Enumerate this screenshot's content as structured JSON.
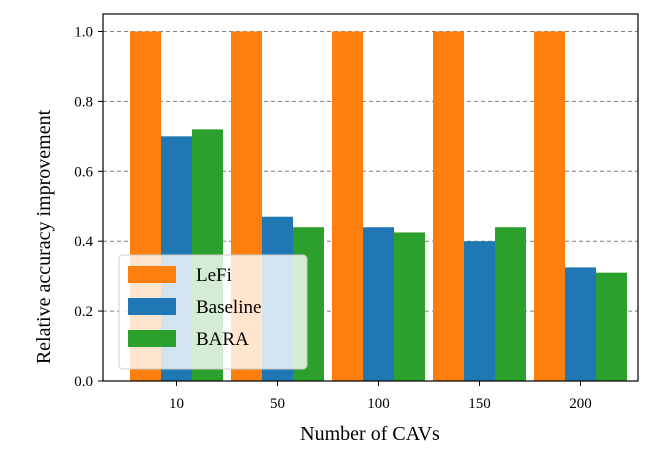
{
  "chart_data": {
    "type": "bar",
    "title": "",
    "xlabel": "Number of CAVs",
    "ylabel": "Relative accuracy improvement",
    "categories": [
      "10",
      "50",
      "100",
      "150",
      "200"
    ],
    "series": [
      {
        "name": "LeFi",
        "color": "#ff7f0e",
        "values": [
          1.0,
          1.0,
          1.0,
          1.0,
          1.0
        ]
      },
      {
        "name": "Baseline",
        "color": "#1f77b4",
        "values": [
          0.7,
          0.47,
          0.44,
          0.4,
          0.325
        ]
      },
      {
        "name": "BARA",
        "color": "#2ca02c",
        "values": [
          0.72,
          0.44,
          0.425,
          0.44,
          0.31
        ]
      }
    ],
    "ylim": [
      0.0,
      1.05
    ],
    "yticks": [
      0.0,
      0.2,
      0.4,
      0.6,
      0.8,
      1.0
    ],
    "ytick_labels": [
      "0.0",
      "0.2",
      "0.4",
      "0.6",
      "0.8",
      "1.0"
    ],
    "grid": "horizontal-dashed",
    "legend_position": "lower-left"
  }
}
